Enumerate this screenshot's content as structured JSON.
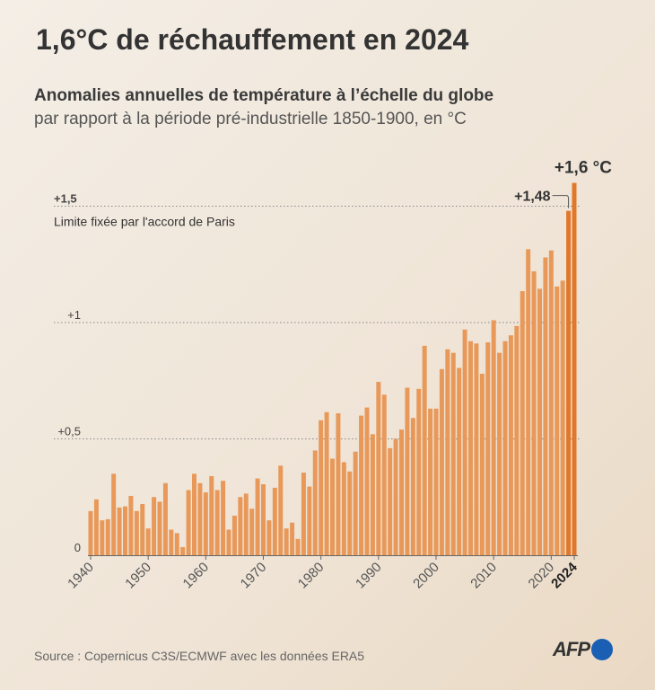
{
  "title": "1,6°C de réchauffement en 2024",
  "subtitle": "Anomalies annuelles de température à l’échelle du globe",
  "subtitle2": "par rapport à la période pré-industrielle 1850-1900, en °C",
  "source": "Source : Copernicus C3S/ECMWF avec les données ERA5",
  "logo": "AFP",
  "colors": {
    "bar": "#e8995a",
    "highlight": "#e0772a",
    "grid": "#888888"
  },
  "chart_data": {
    "type": "bar",
    "x": [
      1940,
      1941,
      1942,
      1943,
      1944,
      1945,
      1946,
      1947,
      1948,
      1949,
      1950,
      1951,
      1952,
      1953,
      1954,
      1955,
      1956,
      1957,
      1958,
      1959,
      1960,
      1961,
      1962,
      1963,
      1964,
      1965,
      1966,
      1967,
      1968,
      1969,
      1970,
      1971,
      1972,
      1973,
      1974,
      1975,
      1976,
      1977,
      1978,
      1979,
      1980,
      1981,
      1982,
      1983,
      1984,
      1985,
      1986,
      1987,
      1988,
      1989,
      1990,
      1991,
      1992,
      1993,
      1994,
      1995,
      1996,
      1997,
      1998,
      1999,
      2000,
      2001,
      2002,
      2003,
      2004,
      2005,
      2006,
      2007,
      2008,
      2009,
      2010,
      2011,
      2012,
      2013,
      2014,
      2015,
      2016,
      2017,
      2018,
      2019,
      2020,
      2021,
      2022,
      2023,
      2024
    ],
    "values": [
      0.19,
      0.24,
      0.15,
      0.155,
      0.35,
      0.205,
      0.21,
      0.255,
      0.19,
      0.22,
      0.115,
      0.25,
      0.23,
      0.31,
      0.11,
      0.095,
      0.035,
      0.28,
      0.35,
      0.31,
      0.27,
      0.34,
      0.28,
      0.32,
      0.11,
      0.17,
      0.25,
      0.265,
      0.2,
      0.33,
      0.305,
      0.15,
      0.29,
      0.385,
      0.115,
      0.14,
      0.07,
      0.355,
      0.295,
      0.45,
      0.58,
      0.615,
      0.415,
      0.61,
      0.4,
      0.36,
      0.445,
      0.6,
      0.635,
      0.52,
      0.745,
      0.69,
      0.46,
      0.5,
      0.54,
      0.72,
      0.59,
      0.715,
      0.9,
      0.63,
      0.63,
      0.8,
      0.885,
      0.87,
      0.805,
      0.97,
      0.92,
      0.91,
      0.78,
      0.915,
      1.01,
      0.87,
      0.92,
      0.945,
      0.985,
      1.135,
      1.315,
      1.22,
      1.145,
      1.28,
      1.31,
      1.155,
      1.18,
      1.48,
      1.6
    ],
    "ylim": [
      0,
      1.6
    ],
    "yticks": [
      {
        "v": 0,
        "label": "0"
      },
      {
        "v": 0.5,
        "label": "+0,5"
      },
      {
        "v": 1,
        "label": "+1"
      },
      {
        "v": 1.5,
        "label": "+1,5"
      }
    ],
    "xticks": [
      "1940",
      "1950",
      "1960",
      "1970",
      "1980",
      "1990",
      "2000",
      "2010",
      "2020",
      "2024"
    ],
    "annotations": {
      "paris": "Limite fixée par l'accord de Paris",
      "label_2023": "+1,48",
      "label_2024": "+1,6 °C"
    },
    "grid": "horizontal dotted"
  }
}
